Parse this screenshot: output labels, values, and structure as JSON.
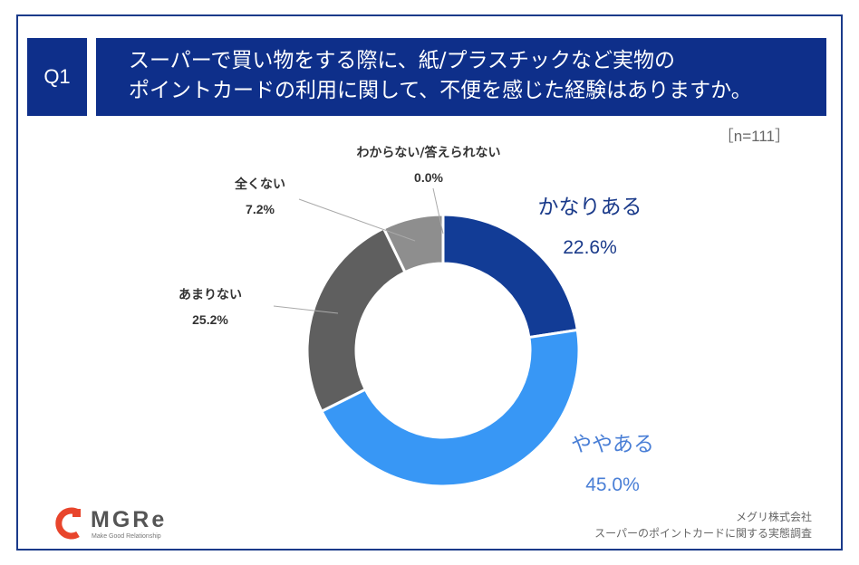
{
  "question": {
    "badge": "Q1",
    "line1": "スーパーで買い物をする際に、紙/プラスチックなど実物の",
    "line2": "ポイントカードの利用に関して、不便を感じた経験はありますか。"
  },
  "sample_size": "［n=111］",
  "brand": {
    "logo_text": "MGRe",
    "tagline": "Make Good Relationship",
    "accent_color": "#e8452c"
  },
  "source": {
    "company": "メグリ株式会社",
    "survey": "スーパーのポイントカードに関する実態調査"
  },
  "chart_data": {
    "type": "pie",
    "variant": "donut",
    "categories": [
      "かなりある",
      "ややある",
      "あまりない",
      "全くない",
      "わからない/答えられない"
    ],
    "values": [
      22.6,
      45.0,
      25.2,
      7.2,
      0.0
    ],
    "value_labels": [
      "22.6%",
      "45.0%",
      "25.2%",
      "7.2%",
      "0.0%"
    ],
    "colors": [
      "#123c96",
      "#3897f5",
      "#5f5f5f",
      "#8e8e8e",
      "#b5b5b5"
    ],
    "label_colors": [
      "#1a3a8a",
      "#4a7fd6",
      "#333333",
      "#333333",
      "#333333"
    ]
  }
}
